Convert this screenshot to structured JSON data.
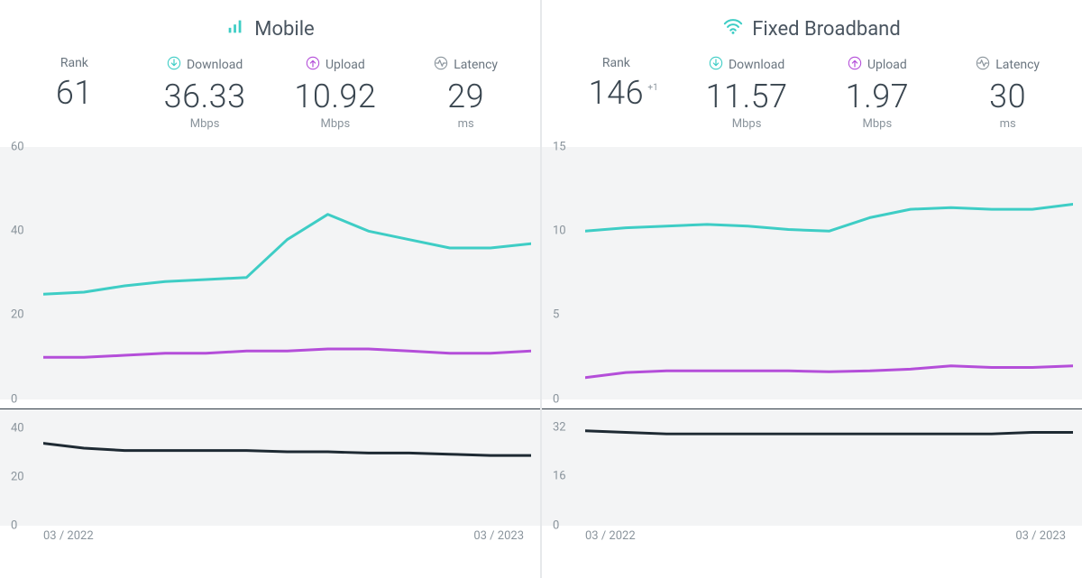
{
  "colors": {
    "download": "#3ecdc5",
    "upload": "#b44ed9",
    "latency": "#1e2a33",
    "chart_bg": "#f3f4f5",
    "text": "#4a5560",
    "muted": "#8a949c"
  },
  "x_range": {
    "start_label": "03 / 2022",
    "end_label": "03 / 2023",
    "n_points": 13
  },
  "panels": [
    {
      "id": "mobile",
      "title": "Mobile",
      "icon": "bars",
      "stats": {
        "rank": {
          "label": "Rank",
          "value": "61",
          "unit": "",
          "icon": null,
          "delta": null
        },
        "download": {
          "label": "Download",
          "value": "36.33",
          "unit": "Mbps",
          "icon": "download",
          "delta": null
        },
        "upload": {
          "label": "Upload",
          "value": "10.92",
          "unit": "Mbps",
          "icon": "upload",
          "delta": null
        },
        "latency": {
          "label": "Latency",
          "value": "29",
          "unit": "ms",
          "icon": "latency",
          "delta": null
        }
      },
      "main_chart": {
        "ylim": [
          0,
          60
        ],
        "yticks": [
          0,
          20,
          40,
          60
        ],
        "series": {
          "download": [
            25,
            25.5,
            27,
            28,
            28.5,
            29,
            38,
            44,
            40,
            38,
            36,
            36,
            37
          ],
          "upload": [
            10,
            10,
            10.5,
            11,
            11,
            11.5,
            11.5,
            12,
            12,
            11.5,
            11,
            11,
            11.5
          ]
        }
      },
      "latency_chart": {
        "ylim": [
          0,
          48
        ],
        "yticks": [
          0,
          20,
          40
        ],
        "series": {
          "latency": [
            34,
            32,
            31,
            31,
            31,
            31,
            30.5,
            30.5,
            30,
            30,
            29.5,
            29,
            29
          ]
        }
      }
    },
    {
      "id": "fixed",
      "title": "Fixed Broadband",
      "icon": "wifi",
      "stats": {
        "rank": {
          "label": "Rank",
          "value": "146",
          "unit": "",
          "icon": null,
          "delta": "+1"
        },
        "download": {
          "label": "Download",
          "value": "11.57",
          "unit": "Mbps",
          "icon": "download",
          "delta": null
        },
        "upload": {
          "label": "Upload",
          "value": "1.97",
          "unit": "Mbps",
          "icon": "upload",
          "delta": null
        },
        "latency": {
          "label": "Latency",
          "value": "30",
          "unit": "ms",
          "icon": "latency",
          "delta": null
        }
      },
      "main_chart": {
        "ylim": [
          0,
          15
        ],
        "yticks": [
          0,
          5,
          10,
          15
        ],
        "series": {
          "download": [
            10,
            10.2,
            10.3,
            10.4,
            10.3,
            10.1,
            10,
            10.8,
            11.3,
            11.4,
            11.3,
            11.3,
            11.6
          ],
          "upload": [
            1.3,
            1.6,
            1.7,
            1.7,
            1.7,
            1.7,
            1.65,
            1.7,
            1.8,
            2.0,
            1.9,
            1.9,
            2.0
          ]
        }
      },
      "latency_chart": {
        "ylim": [
          0,
          38
        ],
        "yticks": [
          0,
          16,
          32
        ],
        "series": {
          "latency": [
            31,
            30.5,
            30,
            30,
            30,
            30,
            30,
            30,
            30,
            30,
            30,
            30.5,
            30.5
          ]
        }
      }
    }
  ]
}
